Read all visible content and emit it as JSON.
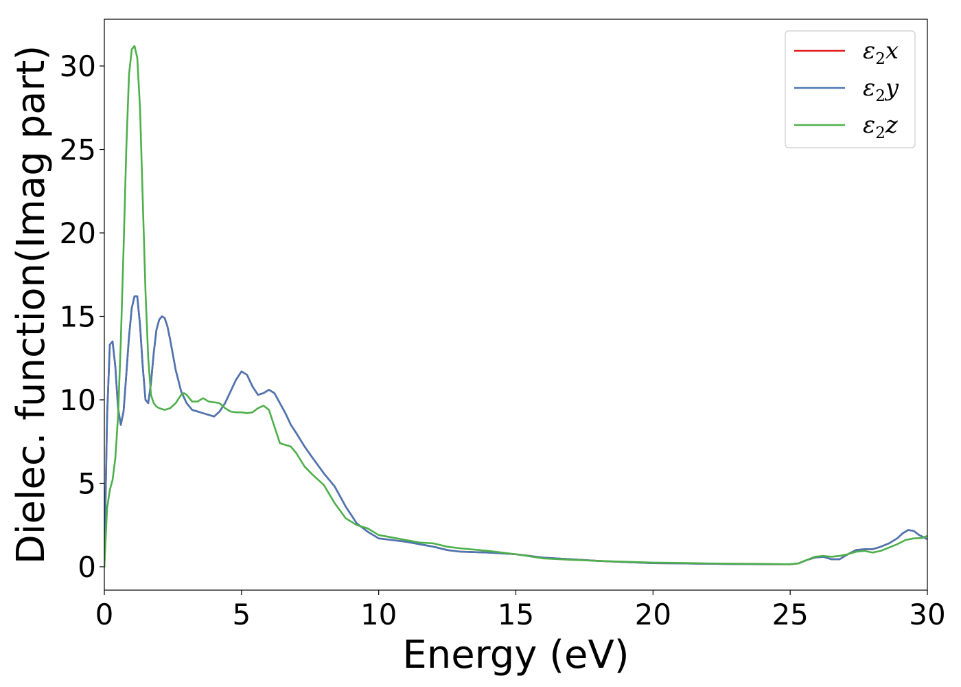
{
  "chart_data": {
    "type": "line",
    "xlabel": "Energy (eV)",
    "ylabel": "Dielec. function(Imag part)",
    "xlim": [
      0,
      30
    ],
    "ylim": [
      -1.4,
      32.8
    ],
    "xticks": [
      0,
      5,
      10,
      15,
      20,
      25,
      30
    ],
    "yticks": [
      0,
      5,
      10,
      15,
      20,
      25,
      30
    ],
    "grid": false,
    "legend_position": "top-right",
    "series": [
      {
        "name": "ε₂x",
        "legend_base": "ε",
        "legend_sub": "2",
        "legend_suffix": "x",
        "color": "#e41a1c",
        "x": [
          0,
          0.1,
          0.2,
          0.3,
          0.4,
          0.5,
          0.6,
          0.7,
          0.8,
          0.9,
          1.0,
          1.1,
          1.2,
          1.3,
          1.4,
          1.5,
          1.6,
          1.7,
          1.8,
          1.9,
          2.0,
          2.1,
          2.2,
          2.3,
          2.4,
          2.5,
          2.6,
          2.8,
          3.0,
          3.2,
          3.4,
          3.6,
          3.8,
          4.0,
          4.2,
          4.4,
          4.6,
          4.8,
          5.0,
          5.2,
          5.4,
          5.6,
          5.8,
          6.0,
          6.2,
          6.4,
          6.6,
          6.8,
          7.0,
          7.3,
          7.6,
          8.0,
          8.4,
          8.8,
          9.2,
          9.6,
          10.0,
          10.5,
          11.0,
          11.5,
          12.0,
          12.5,
          13.0,
          14.0,
          15.0,
          16.0,
          17.0,
          18.0,
          19.0,
          20.0,
          21.0,
          22.0,
          23.0,
          24.0,
          25.0,
          25.3,
          25.6,
          25.9,
          26.2,
          26.5,
          26.8,
          27.1,
          27.4,
          27.7,
          28.0,
          28.3,
          28.6,
          28.9,
          29.1,
          29.3,
          29.5,
          29.7,
          30.0
        ],
        "y": [
          0,
          9.0,
          13.3,
          13.5,
          12.0,
          9.5,
          8.5,
          9.3,
          11.5,
          13.8,
          15.5,
          16.2,
          16.2,
          14.5,
          12.0,
          10.0,
          9.8,
          11.0,
          12.8,
          14.2,
          14.8,
          15.0,
          14.9,
          14.4,
          13.6,
          12.7,
          11.8,
          10.5,
          9.8,
          9.4,
          9.3,
          9.2,
          9.1,
          9.0,
          9.3,
          9.8,
          10.5,
          11.2,
          11.7,
          11.5,
          10.8,
          10.3,
          10.4,
          10.6,
          10.4,
          9.8,
          9.2,
          8.5,
          8.0,
          7.2,
          6.5,
          5.6,
          4.8,
          3.6,
          2.6,
          2.1,
          1.7,
          1.6,
          1.5,
          1.35,
          1.2,
          1.0,
          0.9,
          0.85,
          0.75,
          0.55,
          0.45,
          0.35,
          0.28,
          0.22,
          0.2,
          0.18,
          0.16,
          0.15,
          0.15,
          0.2,
          0.4,
          0.55,
          0.6,
          0.45,
          0.45,
          0.75,
          1.0,
          1.05,
          1.05,
          1.2,
          1.4,
          1.7,
          2.0,
          2.2,
          2.15,
          1.9,
          1.65
        ]
      },
      {
        "name": "ε₂y",
        "legend_base": "ε",
        "legend_sub": "2",
        "legend_suffix": "y",
        "color": "#4a77b4",
        "x": [
          0,
          0.1,
          0.2,
          0.3,
          0.4,
          0.5,
          0.6,
          0.7,
          0.8,
          0.9,
          1.0,
          1.1,
          1.2,
          1.3,
          1.4,
          1.5,
          1.6,
          1.7,
          1.8,
          1.9,
          2.0,
          2.1,
          2.2,
          2.3,
          2.4,
          2.5,
          2.6,
          2.8,
          3.0,
          3.2,
          3.4,
          3.6,
          3.8,
          4.0,
          4.2,
          4.4,
          4.6,
          4.8,
          5.0,
          5.2,
          5.4,
          5.6,
          5.8,
          6.0,
          6.2,
          6.4,
          6.6,
          6.8,
          7.0,
          7.3,
          7.6,
          8.0,
          8.4,
          8.8,
          9.2,
          9.6,
          10.0,
          10.5,
          11.0,
          11.5,
          12.0,
          12.5,
          13.0,
          14.0,
          15.0,
          16.0,
          17.0,
          18.0,
          19.0,
          20.0,
          21.0,
          22.0,
          23.0,
          24.0,
          25.0,
          25.3,
          25.6,
          25.9,
          26.2,
          26.5,
          26.8,
          27.1,
          27.4,
          27.7,
          28.0,
          28.3,
          28.6,
          28.9,
          29.1,
          29.3,
          29.5,
          29.7,
          30.0
        ],
        "y": [
          0,
          9.0,
          13.3,
          13.5,
          12.0,
          9.5,
          8.5,
          9.3,
          11.5,
          13.8,
          15.5,
          16.2,
          16.2,
          14.5,
          12.0,
          10.0,
          9.8,
          11.0,
          12.8,
          14.2,
          14.8,
          15.0,
          14.9,
          14.4,
          13.6,
          12.7,
          11.8,
          10.5,
          9.8,
          9.4,
          9.3,
          9.2,
          9.1,
          9.0,
          9.3,
          9.8,
          10.5,
          11.2,
          11.7,
          11.5,
          10.8,
          10.3,
          10.4,
          10.6,
          10.4,
          9.8,
          9.2,
          8.5,
          8.0,
          7.2,
          6.5,
          5.6,
          4.8,
          3.6,
          2.6,
          2.1,
          1.7,
          1.6,
          1.5,
          1.35,
          1.2,
          1.0,
          0.9,
          0.85,
          0.75,
          0.55,
          0.45,
          0.35,
          0.28,
          0.22,
          0.2,
          0.18,
          0.16,
          0.15,
          0.15,
          0.2,
          0.4,
          0.55,
          0.6,
          0.45,
          0.45,
          0.75,
          1.0,
          1.05,
          1.05,
          1.2,
          1.4,
          1.7,
          2.0,
          2.2,
          2.15,
          1.9,
          1.65
        ]
      },
      {
        "name": "ε₂z",
        "legend_base": "ε",
        "legend_sub": "2",
        "legend_suffix": "z",
        "color": "#4daf4a",
        "x": [
          0,
          0.1,
          0.2,
          0.3,
          0.4,
          0.5,
          0.6,
          0.7,
          0.8,
          0.9,
          1.0,
          1.1,
          1.2,
          1.3,
          1.4,
          1.5,
          1.6,
          1.7,
          1.8,
          1.9,
          2.0,
          2.2,
          2.4,
          2.6,
          2.8,
          2.9,
          3.0,
          3.2,
          3.4,
          3.6,
          3.8,
          4.0,
          4.2,
          4.4,
          4.6,
          4.8,
          5.0,
          5.2,
          5.4,
          5.6,
          5.8,
          6.0,
          6.2,
          6.4,
          6.6,
          6.8,
          7.0,
          7.3,
          7.6,
          8.0,
          8.4,
          8.8,
          9.2,
          9.6,
          10.0,
          10.5,
          11.0,
          11.5,
          12.0,
          12.5,
          13.0,
          14.0,
          15.0,
          16.0,
          17.0,
          18.0,
          19.0,
          20.0,
          21.0,
          22.0,
          23.0,
          24.0,
          25.0,
          25.3,
          25.6,
          25.9,
          26.2,
          26.5,
          26.8,
          27.1,
          27.4,
          27.7,
          28.0,
          28.3,
          28.6,
          28.9,
          29.2,
          29.5,
          29.8,
          30.0
        ],
        "y": [
          0,
          3.5,
          4.6,
          5.2,
          6.5,
          9.0,
          13.5,
          19.0,
          25.0,
          29.5,
          31.0,
          31.2,
          30.5,
          27.5,
          22.0,
          16.5,
          12.5,
          10.3,
          9.8,
          9.6,
          9.5,
          9.4,
          9.5,
          9.8,
          10.3,
          10.4,
          10.3,
          9.9,
          9.9,
          10.1,
          9.9,
          9.85,
          9.8,
          9.5,
          9.3,
          9.25,
          9.25,
          9.2,
          9.25,
          9.5,
          9.65,
          9.4,
          8.4,
          7.4,
          7.3,
          7.2,
          6.8,
          6.0,
          5.5,
          4.9,
          3.8,
          2.9,
          2.5,
          2.3,
          1.9,
          1.75,
          1.6,
          1.45,
          1.4,
          1.2,
          1.1,
          0.95,
          0.75,
          0.5,
          0.42,
          0.35,
          0.3,
          0.25,
          0.23,
          0.2,
          0.18,
          0.17,
          0.15,
          0.2,
          0.4,
          0.6,
          0.65,
          0.6,
          0.65,
          0.75,
          0.9,
          0.95,
          0.85,
          0.95,
          1.15,
          1.35,
          1.6,
          1.7,
          1.72,
          1.85
        ]
      }
    ]
  }
}
